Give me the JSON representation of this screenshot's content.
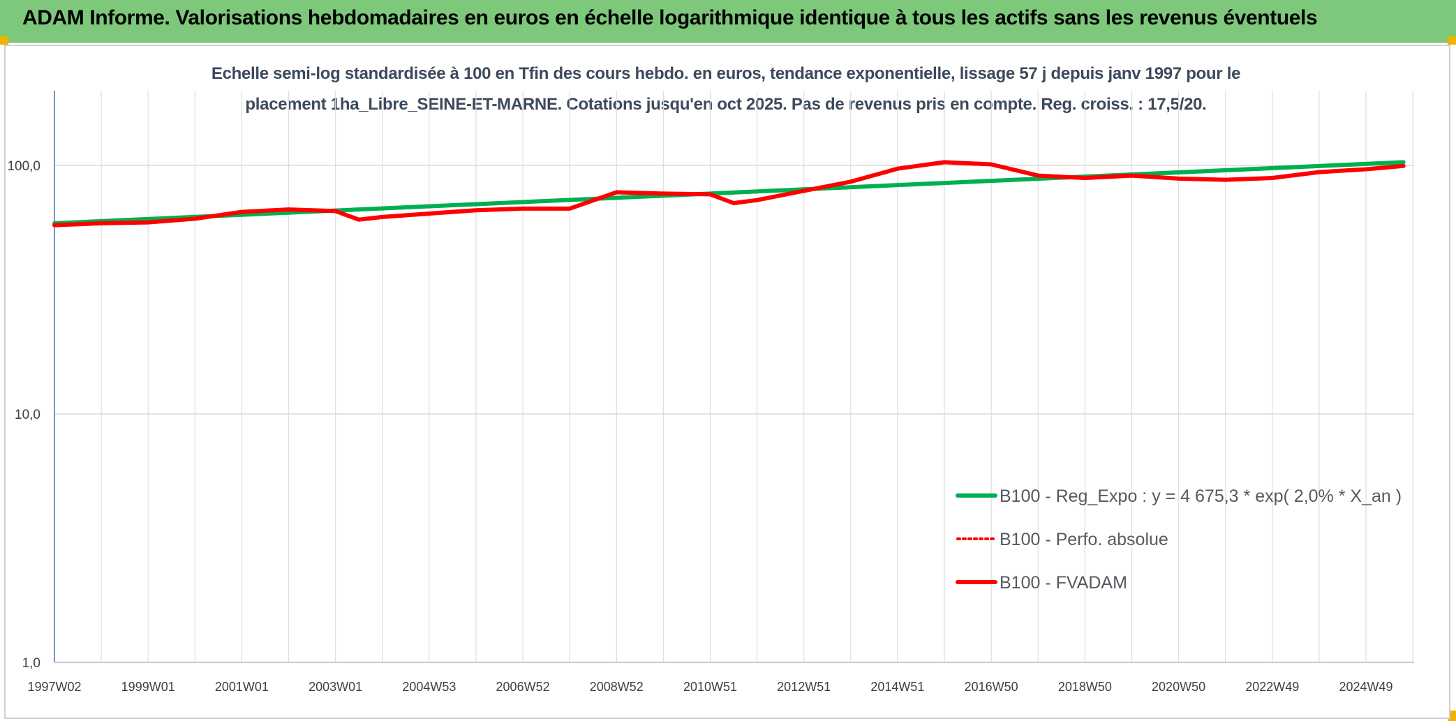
{
  "header": {
    "title": "ADAM Informe. Valorisations hebdomadaires en euros en échelle logarithmique identique à tous les actifs sans les revenus éventuels"
  },
  "chart_data": {
    "type": "line",
    "title": "Echelle semi-log standardisée à 100 en Tfin des cours hebdo. en euros, tendance exponentielle, lissage 57 j depuis janv 1997 pour le placement 1ha_Libre_SEINE-ET-MARNE. Cotations jusqu'en oct 2025. Pas de revenus pris en compte. Reg. croiss. : 17,5/20.",
    "subtitle_lines": [
      "Echelle semi-log standardisée à 100 en Tfin des cours hebdo. en euros, tendance exponentielle, lissage 57 j depuis janv 1997 pour le",
      "placement 1ha_Libre_SEINE-ET-MARNE. Cotations jusqu'en oct 2025. Pas de revenus pris en compte. Reg. croiss. : 17,5/20."
    ],
    "y_scale": "log",
    "ylim": [
      1,
      100
    ],
    "y_ticks": [
      {
        "value": 100,
        "label": "100,0"
      },
      {
        "value": 10,
        "label": "10,0"
      },
      {
        "value": 1,
        "label": "1,0"
      }
    ],
    "x_range": [
      1997.0,
      2025.8
    ],
    "x_ticks": [
      {
        "value": 1997.0,
        "label": "1997W02"
      },
      {
        "value": 1999.0,
        "label": "1999W01"
      },
      {
        "value": 2001.0,
        "label": "2001W01"
      },
      {
        "value": 2003.0,
        "label": "2003W01"
      },
      {
        "value": 2005.0,
        "label": "2004W53"
      },
      {
        "value": 2007.0,
        "label": "2006W52"
      },
      {
        "value": 2009.0,
        "label": "2008W52"
      },
      {
        "value": 2011.0,
        "label": "2010W51"
      },
      {
        "value": 2013.0,
        "label": "2012W51"
      },
      {
        "value": 2015.0,
        "label": "2014W51"
      },
      {
        "value": 2017.0,
        "label": "2016W50"
      },
      {
        "value": 2019.0,
        "label": "2018W50"
      },
      {
        "value": 2021.0,
        "label": "2020W50"
      },
      {
        "value": 2023.0,
        "label": "2022W49"
      },
      {
        "value": 2025.0,
        "label": "2024W49"
      }
    ],
    "grid": true,
    "legend_position": "bottom-right",
    "series": [
      {
        "name": "B100 - Reg_Expo : y = 4 675,3 * exp( 2,0% *  X_an )",
        "color": "#00b050",
        "style": "solid",
        "points": [
          [
            1997.0,
            58.5
          ],
          [
            2025.8,
            103.0
          ]
        ]
      },
      {
        "name": "B100 - Perfo. absolue",
        "color": "#ff0000",
        "style": "dotted",
        "points": []
      },
      {
        "name": "B100 - FVADAM",
        "color": "#ff0000",
        "style": "solid",
        "points": [
          [
            1997.0,
            57.5
          ],
          [
            1998.0,
            58.5
          ],
          [
            1999.0,
            59.0
          ],
          [
            2000.0,
            61.0
          ],
          [
            2001.0,
            65.0
          ],
          [
            2002.0,
            66.5
          ],
          [
            2003.0,
            65.5
          ],
          [
            2003.5,
            60.5
          ],
          [
            2004.0,
            62.0
          ],
          [
            2005.0,
            64.0
          ],
          [
            2006.0,
            66.0
          ],
          [
            2007.0,
            67.0
          ],
          [
            2008.0,
            67.0
          ],
          [
            2009.0,
            78.0
          ],
          [
            2010.0,
            77.0
          ],
          [
            2011.0,
            76.5
          ],
          [
            2011.5,
            70.5
          ],
          [
            2012.0,
            72.5
          ],
          [
            2013.0,
            79.0
          ],
          [
            2014.0,
            86.0
          ],
          [
            2015.0,
            97.0
          ],
          [
            2016.0,
            103.0
          ],
          [
            2017.0,
            101.0
          ],
          [
            2018.0,
            91.0
          ],
          [
            2019.0,
            89.0
          ],
          [
            2020.0,
            91.0
          ],
          [
            2021.0,
            88.5
          ],
          [
            2022.0,
            87.5
          ],
          [
            2023.0,
            89.0
          ],
          [
            2024.0,
            94.0
          ],
          [
            2025.0,
            96.5
          ],
          [
            2025.8,
            99.5
          ]
        ]
      }
    ]
  }
}
